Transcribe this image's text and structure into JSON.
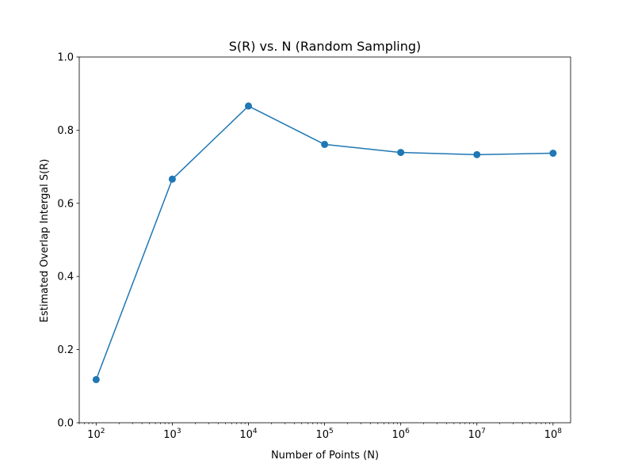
{
  "chart_data": {
    "type": "line",
    "title": "S(R) vs. N (Random Sampling)",
    "xlabel": "Number of Points (N)",
    "ylabel": "Estimated Overlap Intergal S(R)",
    "xscale": "log",
    "x": [
      100,
      1000,
      10000,
      100000,
      1000000,
      10000000,
      100000000
    ],
    "x_tick_labels": [
      {
        "base": "10",
        "exp": "2"
      },
      {
        "base": "10",
        "exp": "3"
      },
      {
        "base": "10",
        "exp": "4"
      },
      {
        "base": "10",
        "exp": "5"
      },
      {
        "base": "10",
        "exp": "6"
      },
      {
        "base": "10",
        "exp": "7"
      },
      {
        "base": "10",
        "exp": "8"
      }
    ],
    "xlim": [
      60,
      170000000
    ],
    "ylim": [
      0.0,
      1.0
    ],
    "y_ticks": [
      0.0,
      0.2,
      0.4,
      0.6,
      0.8,
      1.0
    ],
    "y_tick_labels": [
      "0.0",
      "0.2",
      "0.4",
      "0.6",
      "0.8",
      "1.0"
    ],
    "series": [
      {
        "values": [
          0.118,
          0.666,
          0.866,
          0.761,
          0.739,
          0.733,
          0.737
        ],
        "color": "#1f77b4",
        "marker": "circle"
      }
    ],
    "grid": false,
    "legend": "none"
  }
}
